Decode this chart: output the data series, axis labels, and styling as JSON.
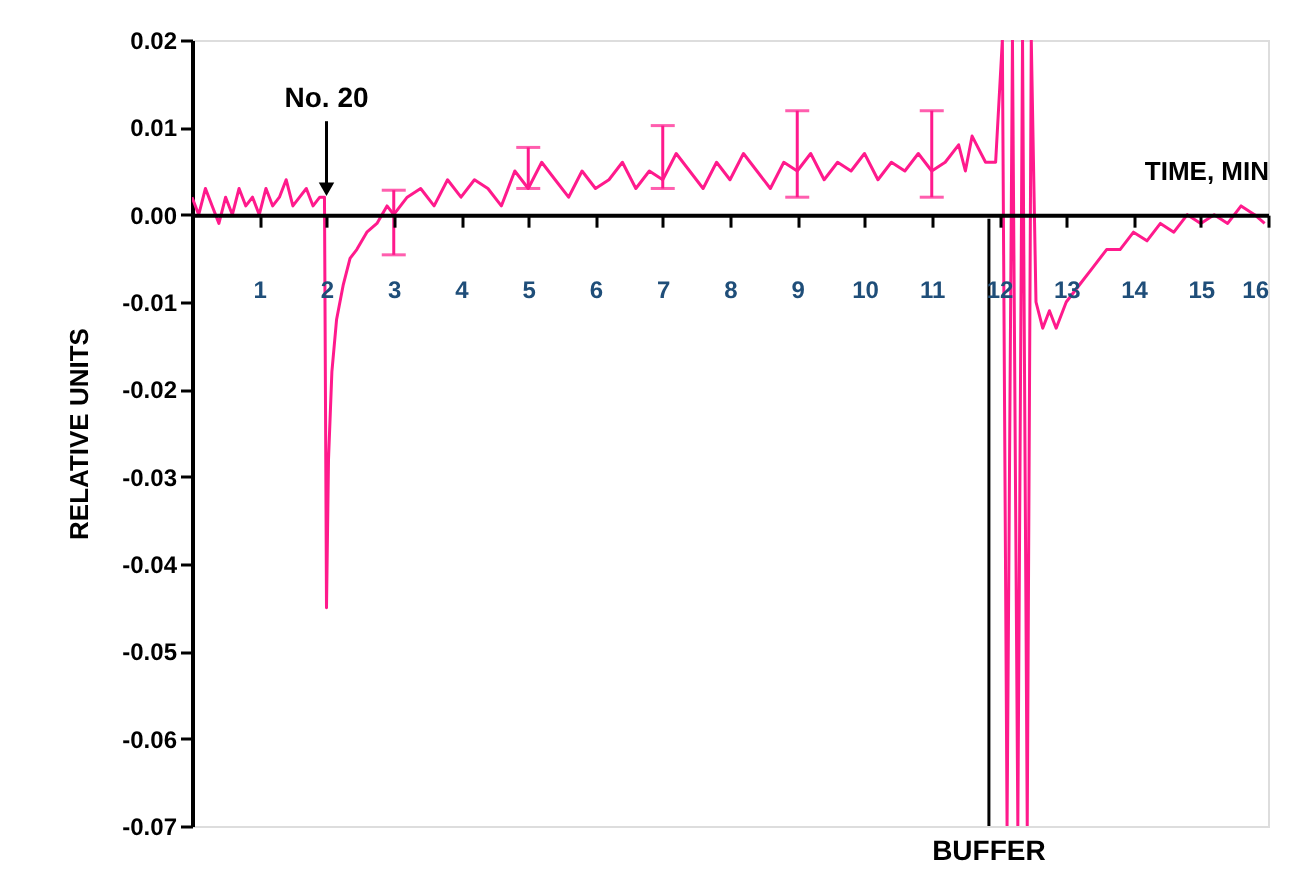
{
  "chart_data": {
    "type": "line",
    "xlabel": "TIME, MIN",
    "ylabel": "RELATIVE UNITS",
    "xlim": [
      0,
      16
    ],
    "xticks": [
      1,
      2,
      3,
      4,
      5,
      6,
      7,
      8,
      9,
      10,
      11,
      12,
      13,
      14,
      15,
      16
    ],
    "ylim": [
      -0.07,
      0.02
    ],
    "yticks": [
      {
        "value": 0.02,
        "label": "0.02"
      },
      {
        "value": 0.01,
        "label": "0.01"
      },
      {
        "value": 0,
        "label": "0.00"
      },
      {
        "value": -0.01,
        "label": "-0.01"
      },
      {
        "value": -0.02,
        "label": "-0.02"
      },
      {
        "value": -0.03,
        "label": "-0.03"
      },
      {
        "value": -0.04,
        "label": "-0.04"
      },
      {
        "value": -0.05,
        "label": "-0.05"
      },
      {
        "value": -0.06,
        "label": "-0.06"
      },
      {
        "value": -0.07,
        "label": "-0.07"
      }
    ],
    "grid": false,
    "annotations": [
      {
        "text": "No. 20",
        "x": 2,
        "y": 0.002
      }
    ],
    "ref_lines": [
      {
        "axis": "x",
        "value": 11.85,
        "label": "BUFFER",
        "color": "#000000"
      }
    ],
    "series": [
      {
        "color": "#ff1a8c",
        "x": [
          0.0,
          0.1,
          0.2,
          0.3,
          0.4,
          0.5,
          0.6,
          0.7,
          0.8,
          0.9,
          1.0,
          1.1,
          1.2,
          1.3,
          1.4,
          1.5,
          1.6,
          1.7,
          1.8,
          1.9,
          1.97,
          2.0,
          2.03,
          2.08,
          2.15,
          2.25,
          2.35,
          2.45,
          2.6,
          2.75,
          2.9,
          3.0,
          3.2,
          3.4,
          3.6,
          3.8,
          4.0,
          4.2,
          4.4,
          4.6,
          4.8,
          5.0,
          5.2,
          5.4,
          5.6,
          5.8,
          6.0,
          6.2,
          6.4,
          6.6,
          6.8,
          7.0,
          7.2,
          7.4,
          7.6,
          7.8,
          8.0,
          8.2,
          8.4,
          8.6,
          8.8,
          9.0,
          9.2,
          9.4,
          9.6,
          9.8,
          10.0,
          10.2,
          10.4,
          10.6,
          10.8,
          11.0,
          11.2,
          11.4,
          11.5,
          11.6,
          11.8,
          11.95,
          12.05,
          12.12,
          12.2,
          12.28,
          12.35,
          12.42,
          12.48,
          12.55,
          12.65,
          12.75,
          12.85,
          13.0,
          13.2,
          13.4,
          13.6,
          13.8,
          14.0,
          14.2,
          14.4,
          14.6,
          14.8,
          15.0,
          15.2,
          15.4,
          15.6,
          15.8,
          15.95
        ],
        "values": [
          0.002,
          0.0,
          0.003,
          0.001,
          -0.001,
          0.002,
          0.0,
          0.003,
          0.001,
          0.002,
          0.0,
          0.003,
          0.001,
          0.002,
          0.004,
          0.001,
          0.002,
          0.003,
          0.001,
          0.002,
          0.002,
          -0.045,
          -0.028,
          -0.018,
          -0.012,
          -0.008,
          -0.005,
          -0.004,
          -0.002,
          -0.001,
          0.001,
          0.0,
          0.002,
          0.003,
          0.001,
          0.004,
          0.002,
          0.004,
          0.003,
          0.001,
          0.005,
          0.003,
          0.006,
          0.004,
          0.002,
          0.005,
          0.003,
          0.004,
          0.006,
          0.003,
          0.005,
          0.004,
          0.007,
          0.005,
          0.003,
          0.006,
          0.004,
          0.007,
          0.005,
          0.003,
          0.006,
          0.005,
          0.007,
          0.004,
          0.006,
          0.005,
          0.007,
          0.004,
          0.006,
          0.005,
          0.007,
          0.005,
          0.006,
          0.008,
          0.005,
          0.009,
          0.006,
          0.006,
          0.02,
          -0.07,
          0.02,
          -0.07,
          0.02,
          -0.07,
          0.02,
          -0.01,
          -0.013,
          -0.011,
          -0.013,
          -0.01,
          -0.008,
          -0.006,
          -0.004,
          -0.004,
          -0.002,
          -0.003,
          -0.001,
          -0.002,
          0.0,
          -0.001,
          0.0,
          -0.001,
          0.001,
          0.0,
          -0.001
        ],
        "errors": [
          null,
          null,
          null,
          null,
          null,
          null,
          null,
          null,
          null,
          null,
          null,
          null,
          null,
          null,
          null,
          null,
          null,
          null,
          null,
          null,
          null,
          null,
          null,
          null,
          null,
          null,
          null,
          null,
          null,
          null,
          null,
          [
            -0.0046,
            0.0028
          ],
          null,
          null,
          null,
          null,
          null,
          null,
          null,
          null,
          null,
          [
            0.003,
            0.0077
          ],
          null,
          null,
          null,
          null,
          null,
          null,
          null,
          null,
          null,
          [
            0.003,
            0.0102
          ],
          null,
          null,
          null,
          null,
          null,
          null,
          null,
          null,
          null,
          [
            0.002,
            0.0119
          ],
          null,
          null,
          null,
          null,
          null,
          null,
          null,
          null,
          null,
          [
            0.002,
            0.0119
          ],
          null,
          null,
          null,
          null,
          null,
          null,
          null,
          null,
          null,
          null,
          null,
          null,
          null,
          null,
          null,
          null,
          null,
          null,
          null,
          null,
          null,
          null,
          null,
          null,
          null,
          null,
          null,
          null,
          null,
          null,
          null,
          null,
          null
        ]
      }
    ]
  }
}
